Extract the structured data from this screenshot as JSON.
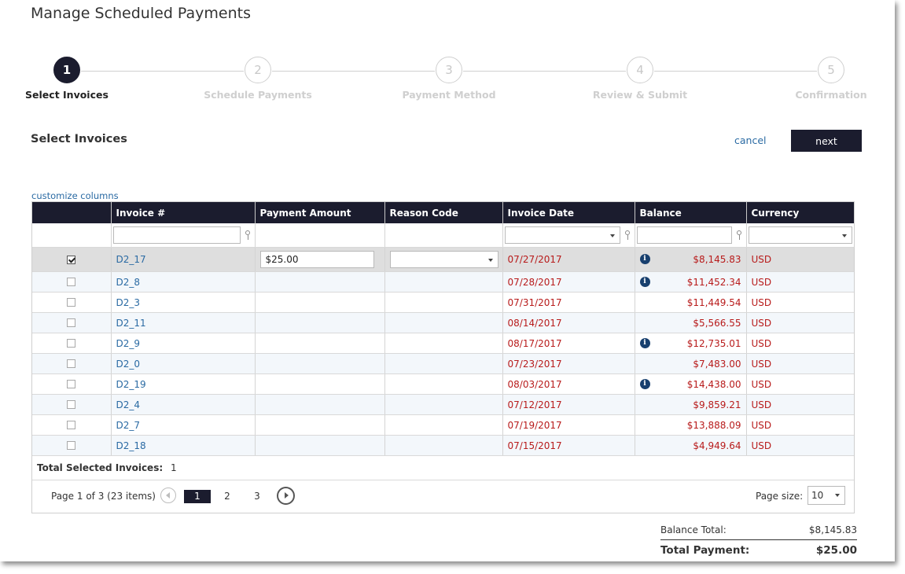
{
  "page_title": "Manage Scheduled Payments",
  "steps": [
    {
      "number": "1",
      "label": "Select Invoices",
      "active": true
    },
    {
      "number": "2",
      "label": "Schedule Payments",
      "active": false
    },
    {
      "number": "3",
      "label": "Payment Method",
      "active": false
    },
    {
      "number": "4",
      "label": "Review & Submit",
      "active": false
    },
    {
      "number": "5",
      "label": "Confirmation",
      "active": false
    }
  ],
  "section_title": "Select Invoices",
  "actions": {
    "cancel_label": "cancel",
    "next_label": "next"
  },
  "customize_columns_label": "customize columns",
  "columns": [
    "",
    "Invoice #",
    "Payment Amount",
    "Reason Code",
    "Invoice Date",
    "Balance",
    "Currency"
  ],
  "rows": [
    {
      "checked": true,
      "invoice": "D2_17",
      "payment_amount": "$25.00",
      "reason_code": "",
      "date": "07/27/2017",
      "balance": "$8,145.83",
      "info": true,
      "currency": "USD"
    },
    {
      "checked": false,
      "invoice": "D2_8",
      "payment_amount": "",
      "reason_code": "",
      "date": "07/28/2017",
      "balance": "$11,452.34",
      "info": true,
      "currency": "USD"
    },
    {
      "checked": false,
      "invoice": "D2_3",
      "payment_amount": "",
      "reason_code": "",
      "date": "07/31/2017",
      "balance": "$11,449.54",
      "info": false,
      "currency": "USD"
    },
    {
      "checked": false,
      "invoice": "D2_11",
      "payment_amount": "",
      "reason_code": "",
      "date": "08/14/2017",
      "balance": "$5,566.55",
      "info": false,
      "currency": "USD"
    },
    {
      "checked": false,
      "invoice": "D2_9",
      "payment_amount": "",
      "reason_code": "",
      "date": "08/17/2017",
      "balance": "$12,735.01",
      "info": true,
      "currency": "USD"
    },
    {
      "checked": false,
      "invoice": "D2_0",
      "payment_amount": "",
      "reason_code": "",
      "date": "07/23/2017",
      "balance": "$7,483.00",
      "info": false,
      "currency": "USD"
    },
    {
      "checked": false,
      "invoice": "D2_19",
      "payment_amount": "",
      "reason_code": "",
      "date": "08/03/2017",
      "balance": "$14,438.00",
      "info": true,
      "currency": "USD"
    },
    {
      "checked": false,
      "invoice": "D2_4",
      "payment_amount": "",
      "reason_code": "",
      "date": "07/12/2017",
      "balance": "$9,859.21",
      "info": false,
      "currency": "USD"
    },
    {
      "checked": false,
      "invoice": "D2_7",
      "payment_amount": "",
      "reason_code": "",
      "date": "07/19/2017",
      "balance": "$13,888.09",
      "info": false,
      "currency": "USD"
    },
    {
      "checked": false,
      "invoice": "D2_18",
      "payment_amount": "",
      "reason_code": "",
      "date": "07/15/2017",
      "balance": "$4,949.64",
      "info": false,
      "currency": "USD"
    }
  ],
  "info_icon_glyph": "i",
  "total_selected": {
    "label": "Total Selected Invoices:",
    "value": "1"
  },
  "pager": {
    "info": "Page 1 of 3 (23 items)",
    "pages": [
      "1",
      "2",
      "3"
    ],
    "current_page": "1",
    "page_size_label": "Page size:",
    "page_size_value": "10"
  },
  "summary": {
    "balance_total_label": "Balance Total:",
    "balance_total_value": "$8,145.83",
    "total_payment_label": "Total Payment:",
    "total_payment_value": "$25.00"
  },
  "colors": {
    "header_bg": "#1b1c2e",
    "link": "#2a6aa3",
    "date_balance": "#b81b1b",
    "info_icon": "#173f6e"
  }
}
